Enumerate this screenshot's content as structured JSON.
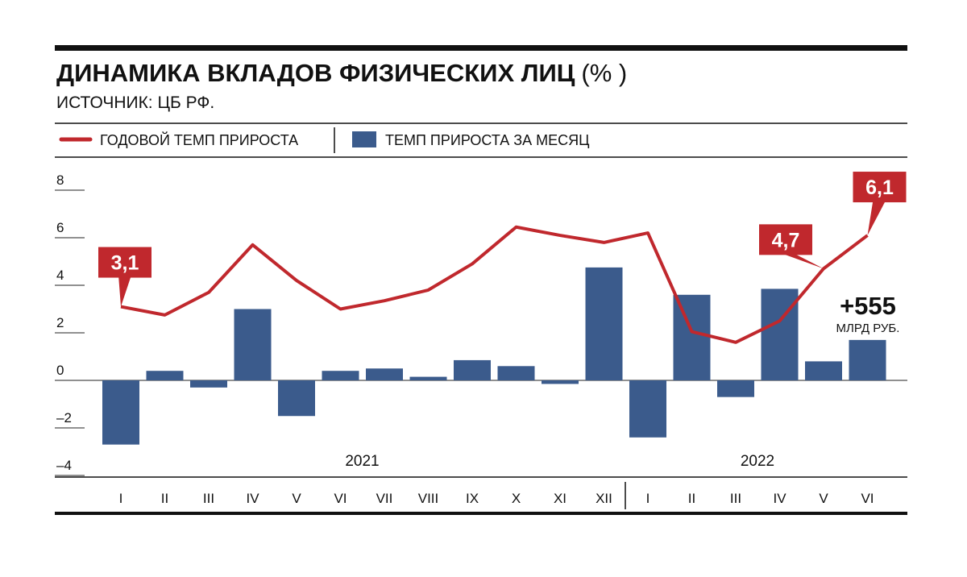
{
  "chart_data": {
    "type": "bar_line",
    "title": "ДИНАМИКА ВКЛАДОВ ФИЗИЧЕСКИХ ЛИЦ",
    "title_unit": "(% )",
    "subtitle": "ИСТОЧНИК: ЦБ РФ.",
    "categories": [
      "I",
      "II",
      "III",
      "IV",
      "V",
      "VI",
      "VII",
      "VIII",
      "IX",
      "X",
      "XI",
      "XII",
      "I",
      "II",
      "III",
      "IV",
      "V",
      "VI"
    ],
    "years": [
      "2021",
      "2022"
    ],
    "series": [
      {
        "name": "ГОДОВОЙ ТЕМП ПРИРОСТА",
        "kind": "line",
        "color": "#c0282d",
        "values": [
          3.1,
          2.75,
          3.7,
          5.7,
          4.2,
          3.0,
          3.35,
          3.8,
          4.9,
          6.45,
          6.1,
          5.8,
          6.2,
          2.05,
          1.6,
          2.5,
          4.7,
          6.1
        ],
        "value_labels": [
          "3,1",
          null,
          null,
          null,
          null,
          null,
          null,
          null,
          null,
          null,
          null,
          null,
          null,
          null,
          null,
          null,
          "4,7",
          "6,1"
        ]
      },
      {
        "name": "ТЕМП ПРИРОСТА ЗА МЕСЯЦ",
        "kind": "bar",
        "color": "#3b5b8c",
        "values": [
          -2.7,
          0.4,
          -0.3,
          3.0,
          -1.5,
          0.4,
          0.5,
          0.15,
          0.85,
          0.6,
          -0.15,
          4.75,
          -2.4,
          3.6,
          -0.7,
          3.85,
          0.8,
          1.7
        ]
      }
    ],
    "annotation": {
      "value": "+555",
      "unit": "МЛРД РУБ."
    },
    "ylim": [
      -4,
      8
    ],
    "yticks": [
      8,
      6,
      4,
      2,
      0,
      {
        "value": -2,
        "label": "–2"
      },
      {
        "value": -4,
        "label": "–4"
      }
    ]
  }
}
